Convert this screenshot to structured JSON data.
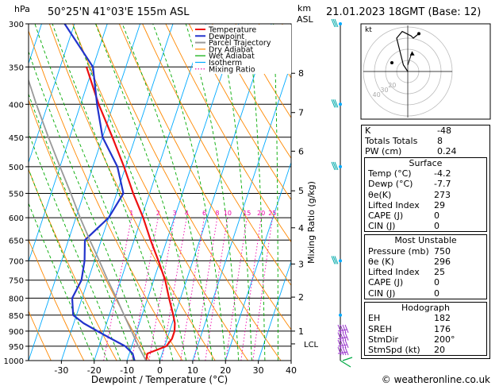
{
  "header": {
    "hpa_unit": "hPa",
    "location": "50°25'N  41°03'E  155m  ASL",
    "km_unit": "km",
    "asl_label": "ASL",
    "datetime": "21.01.2023  18GMT  (Base: 12)"
  },
  "axes": {
    "xlabel": "Dewpoint / Temperature (°C)",
    "ylabel_right": "Mixing Ratio (g/kg)",
    "pressure_ticks": [
      300,
      350,
      400,
      450,
      500,
      550,
      600,
      650,
      700,
      750,
      800,
      850,
      900,
      950,
      1000
    ],
    "temp_ticks": [
      -30,
      -20,
      -10,
      0,
      10,
      20,
      30,
      40
    ],
    "xlim": [
      -40,
      40
    ],
    "ylim": [
      1000,
      300
    ],
    "skew_degC_per_decade": 6.5,
    "km_ticks": [
      {
        "km": "8",
        "p": 358
      },
      {
        "km": "7",
        "p": 412
      },
      {
        "km": "6",
        "p": 473
      },
      {
        "km": "5",
        "p": 545
      },
      {
        "km": "4",
        "p": 622
      },
      {
        "km": "3",
        "p": 708
      },
      {
        "km": "2",
        "p": 797
      },
      {
        "km": "1",
        "p": 900
      }
    ],
    "lcl_label": "LCL",
    "lcl_p": 942,
    "mixing_ratio_labels": [
      "1",
      "2",
      "3",
      "4",
      "6",
      "8",
      "10",
      "15",
      "20",
      "25"
    ],
    "mixing_ratio_values": [
      1,
      2,
      3,
      4,
      6,
      8,
      10,
      15,
      20,
      25
    ]
  },
  "legend": [
    "Temperature",
    "Dewpoint",
    "Parcel Trajectory",
    "Dry Adiabat",
    "Wet Adiabat",
    "Isotherm",
    "Mixing Ratio"
  ],
  "colors": {
    "temperature": "#ee1111",
    "dewpoint": "#2233cc",
    "parcel": "#999999",
    "dry_adiabat": "#ff8800",
    "wet_adiabat": "#00aa00",
    "isotherm": "#00aaff",
    "mixing_ratio": "#ee00aa",
    "wind_barb": "#9933cc"
  },
  "chart_data": {
    "type": "line",
    "title": "Skew-T log-P sounding",
    "xlabel": "Dewpoint / Temperature (°C)",
    "ylabel": "Pressure (hPa)",
    "series": [
      {
        "name": "Temperature",
        "p": [
          1000,
          975,
          960,
          950,
          925,
          900,
          875,
          850,
          800,
          750,
          700,
          650,
          600,
          550,
          500,
          450,
          400,
          350
        ],
        "t": [
          -4.2,
          -4.5,
          -1.5,
          0.5,
          1.5,
          1.5,
          0.8,
          -0.5,
          -3.5,
          -6.5,
          -10.5,
          -15,
          -19.5,
          -25,
          -30.5,
          -37,
          -44.5,
          -52
        ]
      },
      {
        "name": "Dewpoint",
        "p": [
          1000,
          975,
          950,
          925,
          900,
          875,
          850,
          800,
          750,
          700,
          650,
          600,
          550,
          500,
          450,
          400,
          350,
          300
        ],
        "t": [
          -7.7,
          -9,
          -12,
          -17,
          -22,
          -27,
          -31,
          -33,
          -32,
          -33,
          -35,
          -30,
          -28,
          -32.5,
          -40,
          -45,
          -50,
          -63
        ]
      },
      {
        "name": "Parcel Trajectory",
        "p": [
          1000,
          950,
          900,
          850,
          800,
          750,
          700,
          650,
          600,
          550,
          500,
          450,
          400,
          350,
          300
        ],
        "t": [
          -4.2,
          -8,
          -11.6,
          -15.5,
          -19.5,
          -24,
          -28.5,
          -33.5,
          -38.7,
          -44,
          -50,
          -56.5,
          -63.5,
          -71,
          -79
        ]
      }
    ]
  },
  "indices": {
    "rows": [
      {
        "label": "K",
        "value": "-48"
      },
      {
        "label": "Totals Totals",
        "value": "8"
      },
      {
        "label": "PW (cm)",
        "value": "0.24"
      }
    ],
    "surface": {
      "title": "Surface",
      "rows": [
        {
          "label": "Temp (°C)",
          "value": "-4.2"
        },
        {
          "label": "Dewp (°C)",
          "value": "-7.7"
        },
        {
          "label": "θe(K)",
          "value": "273"
        },
        {
          "label": "Lifted Index",
          "value": "29"
        },
        {
          "label": "CAPE (J)",
          "value": "0"
        },
        {
          "label": "CIN (J)",
          "value": "0"
        }
      ]
    },
    "most_unstable": {
      "title": "Most Unstable",
      "rows": [
        {
          "label": "Pressure (mb)",
          "value": "750"
        },
        {
          "label": "θe (K)",
          "value": "296"
        },
        {
          "label": "Lifted Index",
          "value": "25"
        },
        {
          "label": "CAPE (J)",
          "value": "0"
        },
        {
          "label": "CIN (J)",
          "value": "0"
        }
      ]
    },
    "hodograph": {
      "title": "Hodograph",
      "rows": [
        {
          "label": "EH",
          "value": "182"
        },
        {
          "label": "SREH",
          "value": "176"
        },
        {
          "label": "StmDir",
          "value": "200°"
        },
        {
          "label": "StmSpd (kt)",
          "value": "20"
        }
      ]
    }
  },
  "hodograph_plot": {
    "label": "kt",
    "ring_labels": [
      "40",
      "30",
      "20"
    ],
    "points": [
      [
        0.0,
        0.0
      ],
      [
        -4,
        6
      ],
      [
        -6,
        14
      ],
      [
        -10,
        30
      ],
      [
        -5,
        36
      ],
      [
        3,
        32
      ],
      [
        5,
        30
      ],
      [
        10,
        34
      ]
    ],
    "storm_motion": [
      4,
      18
    ]
  },
  "footer": {
    "copyright": "© weatheronline.co.uk"
  }
}
